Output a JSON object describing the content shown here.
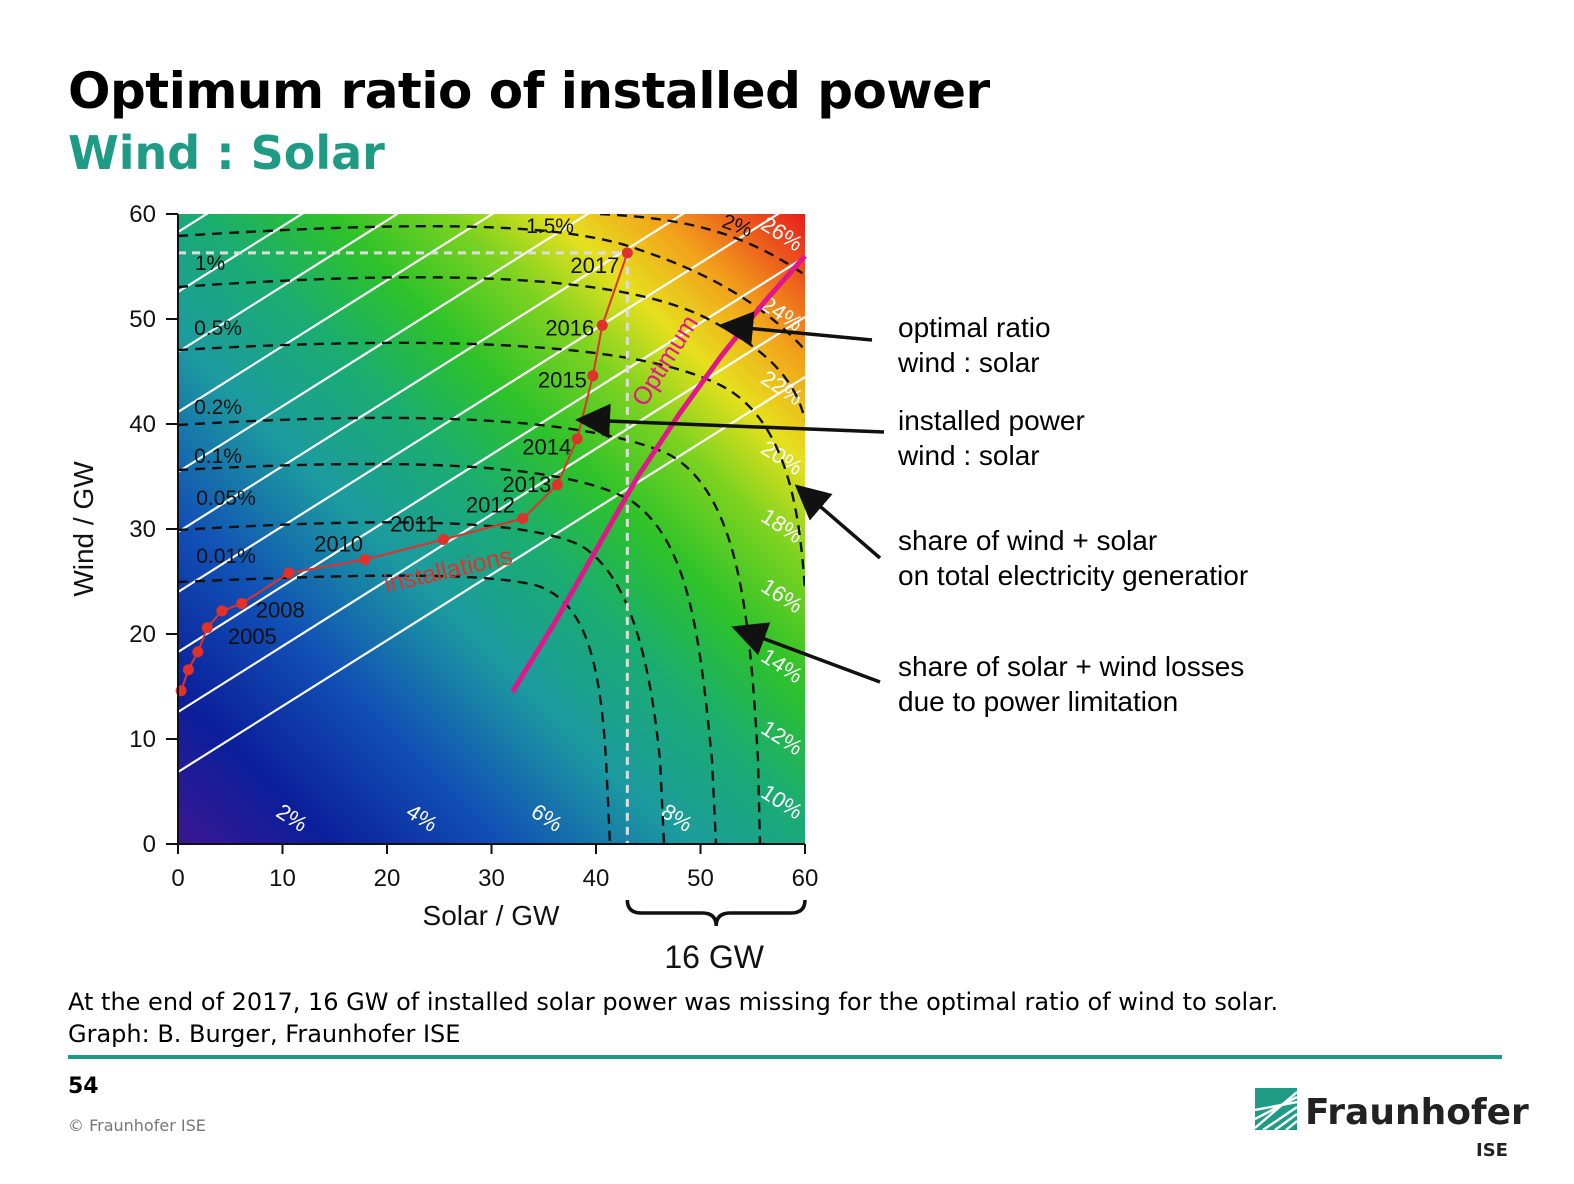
{
  "slide": {
    "title": "Optimum ratio of installed power",
    "subtitle": "Wind : Solar",
    "caption_lines": [
      "At the end of 2017, 16 GW of installed solar power was missing for the optimal ratio of wind to solar.",
      "Graph: B. Burger, Fraunhofer ISE"
    ],
    "page_number": "54",
    "copyright": "© Fraunhofer ISE",
    "logo": {
      "name": "Fraunhofer",
      "sub": "ISE",
      "icon": "fraunhofer-logo-icon"
    },
    "colors": {
      "accent": "#1f9b85",
      "installations": "#e0312b",
      "optimum": "#e0178a"
    }
  },
  "annotations": [
    {
      "lines": [
        "optimal ratio",
        "wind : solar"
      ]
    },
    {
      "lines": [
        "installed power",
        "wind : solar"
      ]
    },
    {
      "lines": [
        "share of wind + solar",
        "on total electricity generatior"
      ]
    },
    {
      "lines": [
        "share of solar + wind losses",
        "due to power limitation"
      ]
    }
  ],
  "chart_data": {
    "type": "line",
    "xlabel": "Solar / GW",
    "ylabel": "Wind / GW",
    "xlim": [
      0,
      60
    ],
    "ylim": [
      0,
      60
    ],
    "xticks": [
      0,
      10,
      20,
      30,
      40,
      50,
      60
    ],
    "yticks": [
      0,
      10,
      20,
      30,
      40,
      50,
      60
    ],
    "background": "heatmap of share of wind + solar on total electricity generation (blue = low, red = high)",
    "series": [
      {
        "name": "installations",
        "points": [
          {
            "x": 0.3,
            "y": 14.6,
            "label": ""
          },
          {
            "x": 1.0,
            "y": 16.6,
            "label": ""
          },
          {
            "x": 1.9,
            "y": 18.3,
            "label": "2005"
          },
          {
            "x": 2.8,
            "y": 20.6,
            "label": ""
          },
          {
            "x": 4.2,
            "y": 22.2,
            "label": ""
          },
          {
            "x": 6.1,
            "y": 22.9,
            "label": "2008"
          },
          {
            "x": 10.6,
            "y": 25.8,
            "label": ""
          },
          {
            "x": 17.9,
            "y": 27.1,
            "label": "2010"
          },
          {
            "x": 25.4,
            "y": 29.0,
            "label": "2011"
          },
          {
            "x": 33.0,
            "y": 31.0,
            "label": "2012"
          },
          {
            "x": 36.3,
            "y": 34.2,
            "label": "2013"
          },
          {
            "x": 38.2,
            "y": 38.6,
            "label": "2014"
          },
          {
            "x": 39.7,
            "y": 44.6,
            "label": "2015"
          },
          {
            "x": 40.6,
            "y": 49.4,
            "label": "2016"
          },
          {
            "x": 43.0,
            "y": 56.3,
            "label": "2017"
          }
        ]
      },
      {
        "name": "Optimum",
        "points": [
          {
            "x": 32,
            "y": 14.5
          },
          {
            "x": 36,
            "y": 21
          },
          {
            "x": 40,
            "y": 28
          },
          {
            "x": 44,
            "y": 35
          },
          {
            "x": 48,
            "y": 41
          },
          {
            "x": 52,
            "y": 46.5
          },
          {
            "x": 56,
            "y": 51.5
          },
          {
            "x": 60,
            "y": 56
          }
        ]
      }
    ],
    "share_contours": {
      "labels": [
        "2%",
        "4%",
        "6%",
        "8%",
        "10%",
        "12%",
        "14%",
        "16%",
        "18%",
        "20%",
        "22%",
        "24%",
        "26%"
      ]
    },
    "loss_contours": {
      "labels": [
        "0.01%",
        "0.05%",
        "0.1%",
        "0.2%",
        "0.5%",
        "1%",
        "1.5%",
        "2%"
      ]
    },
    "reference_2017": {
      "x": 43,
      "y": 56.3
    },
    "gap_annotation": {
      "from_x": 43,
      "to_x": 60,
      "label": "16 GW"
    }
  }
}
